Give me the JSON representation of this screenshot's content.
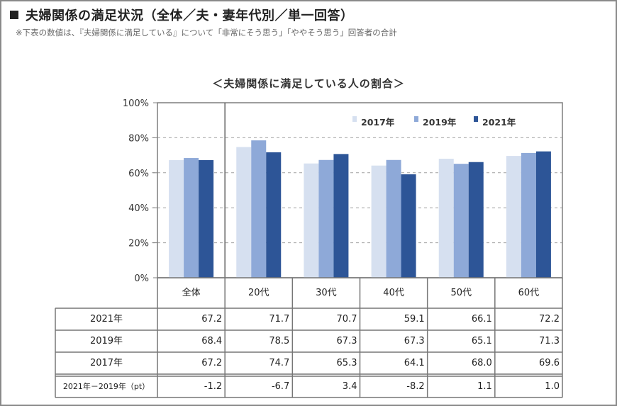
{
  "header": {
    "title": "夫婦関係の満足状況（全体／夫・妻年代別／単一回答）",
    "note": "※下表の数値は、『夫婦関係に満足している』について「非常にそう思う」「ややそう思う」回答者の合計"
  },
  "colors": {
    "2017": "#d6e0f0",
    "2019": "#8ea9d8",
    "2021": "#2d5597",
    "grid": "#a0a0a0",
    "axis": "#7f7f7f"
  },
  "chart_data": {
    "type": "bar",
    "title": "＜夫婦関係に満足している人の割合＞",
    "categories": [
      "全体",
      "20代",
      "30代",
      "40代",
      "50代",
      "60代"
    ],
    "series": [
      {
        "name": "2017年",
        "key": "2017",
        "values": [
          67.2,
          74.7,
          65.3,
          64.1,
          68.0,
          69.6
        ]
      },
      {
        "name": "2019年",
        "key": "2019",
        "values": [
          68.4,
          78.5,
          67.3,
          67.3,
          65.1,
          71.3
        ]
      },
      {
        "name": "2021年",
        "key": "2021",
        "values": [
          67.2,
          71.7,
          70.7,
          59.1,
          66.1,
          72.2
        ]
      }
    ],
    "ylim": [
      0,
      100
    ],
    "yticks": [
      "0%",
      "20%",
      "40%",
      "60%",
      "80%",
      "100%"
    ],
    "ytick_values": [
      0,
      20,
      40,
      60,
      80,
      100
    ],
    "xlabel": "",
    "ylabel": "",
    "grid": true,
    "legend_position": "top-right",
    "legend": [
      "2017年",
      "2019年",
      "2021年"
    ]
  },
  "table": {
    "columns": [
      "全体",
      "20代",
      "30代",
      "40代",
      "50代",
      "60代"
    ],
    "rows": [
      {
        "label": "2021年",
        "values": [
          "67.2",
          "71.7",
          "70.7",
          "59.1",
          "66.1",
          "72.2"
        ]
      },
      {
        "label": "2019年",
        "values": [
          "68.4",
          "78.5",
          "67.3",
          "67.3",
          "65.1",
          "71.3"
        ]
      },
      {
        "label": "2017年",
        "values": [
          "67.2",
          "74.7",
          "65.3",
          "64.1",
          "68.0",
          "69.6"
        ]
      },
      {
        "label": "2021年－2019年（pt）",
        "values": [
          "-1.2",
          "-6.7",
          "3.4",
          "-8.2",
          "1.1",
          "1.0"
        ]
      }
    ]
  }
}
